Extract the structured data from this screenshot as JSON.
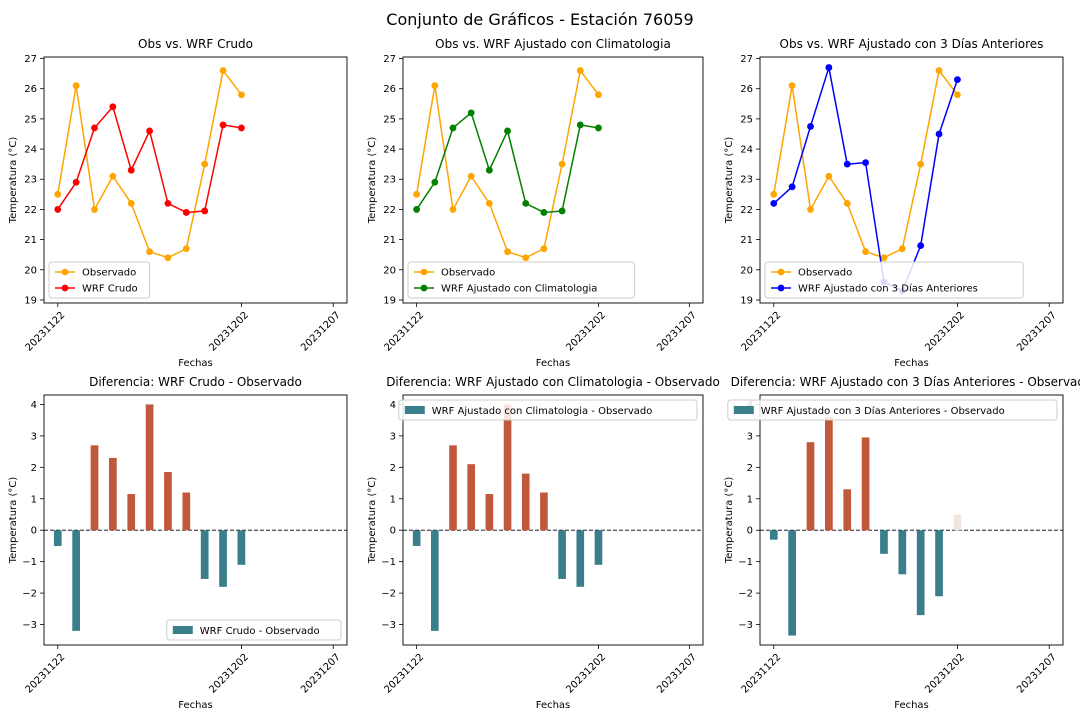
{
  "suptitle": "Conjunto de Gráficos - Estación 76059",
  "colors": {
    "observado": "#FFA500",
    "crudo": "#FF0000",
    "clima": "#008000",
    "tres_dias": "#0000FF",
    "positive_bar": "#C0583C",
    "negative_bar": "#3A7E8C",
    "faint_bar": "#F1E4DE"
  },
  "chart_data": [
    {
      "type": "line",
      "title": "Obs vs. WRF Crudo",
      "xlabel": "Fechas",
      "ylabel": "Temperatura (°C)",
      "x": [
        "20231122",
        "20231123",
        "20231124",
        "20231125",
        "20231126",
        "20231127",
        "20231128",
        "20231129",
        "20231130",
        "20231201",
        "20231202",
        "20231203",
        "20231204",
        "20231205",
        "20231206",
        "20231207"
      ],
      "xticks": [
        "20231122",
        "20231202",
        "20231207"
      ],
      "yticks": [
        19,
        20,
        21,
        22,
        23,
        24,
        25,
        26,
        27
      ],
      "ylim": [
        18.9,
        27.05
      ],
      "legend_position": "lower-left",
      "series": [
        {
          "name": "Observado",
          "color_key": "observado",
          "points": [
            [
              "20231122",
              22.5
            ],
            [
              "20231123",
              26.1
            ],
            [
              "20231124",
              22.0
            ],
            [
              "20231125",
              23.1
            ],
            [
              "20231126",
              22.2
            ],
            [
              "20231127",
              20.6
            ],
            [
              "20231128",
              20.4
            ],
            [
              "20231129",
              20.7
            ],
            [
              "20231130",
              23.5
            ],
            [
              "20231201",
              26.6
            ],
            [
              "20231202",
              25.8
            ]
          ]
        },
        {
          "name": "WRF Crudo",
          "color_key": "crudo",
          "points": [
            [
              "20231122",
              22.0
            ],
            [
              "20231123",
              22.9
            ],
            [
              "20231124",
              24.7
            ],
            [
              "20231125",
              25.4
            ],
            [
              "20231126",
              23.3
            ],
            [
              "20231127",
              24.6
            ],
            [
              "20231128",
              22.2
            ],
            [
              "20231129",
              21.9
            ],
            [
              "20231130",
              21.95
            ],
            [
              "20231201",
              24.8
            ],
            [
              "20231202",
              24.7
            ]
          ]
        }
      ]
    },
    {
      "type": "line",
      "title": "Obs vs. WRF Ajustado con Climatologia",
      "xlabel": "Fechas",
      "ylabel": "Temperatura (°C)",
      "xticks": [
        "20231122",
        "20231202",
        "20231207"
      ],
      "yticks": [
        19,
        20,
        21,
        22,
        23,
        24,
        25,
        26,
        27
      ],
      "ylim": [
        18.9,
        27.05
      ],
      "legend_position": "lower-left",
      "series": [
        {
          "name": "Observado",
          "color_key": "observado",
          "points": [
            [
              "20231122",
              22.5
            ],
            [
              "20231123",
              26.1
            ],
            [
              "20231124",
              22.0
            ],
            [
              "20231125",
              23.1
            ],
            [
              "20231126",
              22.2
            ],
            [
              "20231127",
              20.6
            ],
            [
              "20231128",
              20.4
            ],
            [
              "20231129",
              20.7
            ],
            [
              "20231130",
              23.5
            ],
            [
              "20231201",
              26.6
            ],
            [
              "20231202",
              25.8
            ]
          ]
        },
        {
          "name": "WRF Ajustado con Climatologia",
          "color_key": "clima",
          "points": [
            [
              "20231122",
              22.0
            ],
            [
              "20231123",
              22.9
            ],
            [
              "20231124",
              24.7
            ],
            [
              "20231125",
              25.2
            ],
            [
              "20231126",
              23.3
            ],
            [
              "20231127",
              24.6
            ],
            [
              "20231128",
              22.2
            ],
            [
              "20231129",
              21.9
            ],
            [
              "20231130",
              21.95
            ],
            [
              "20231201",
              24.8
            ],
            [
              "20231202",
              24.7
            ]
          ]
        }
      ]
    },
    {
      "type": "line",
      "title": "Obs vs. WRF Ajustado con 3 Días Anteriores",
      "xlabel": "Fechas",
      "ylabel": "Temperatura (°C)",
      "xticks": [
        "20231122",
        "20231202",
        "20231207"
      ],
      "yticks": [
        19,
        20,
        21,
        22,
        23,
        24,
        25,
        26,
        27
      ],
      "ylim": [
        18.9,
        27.05
      ],
      "legend_position": "lower-left",
      "series": [
        {
          "name": "Observado",
          "color_key": "observado",
          "points": [
            [
              "20231122",
              22.5
            ],
            [
              "20231123",
              26.1
            ],
            [
              "20231124",
              22.0
            ],
            [
              "20231125",
              23.1
            ],
            [
              "20231126",
              22.2
            ],
            [
              "20231127",
              20.6
            ],
            [
              "20231128",
              20.4
            ],
            [
              "20231129",
              20.7
            ],
            [
              "20231130",
              23.5
            ],
            [
              "20231201",
              26.6
            ],
            [
              "20231202",
              25.8
            ]
          ]
        },
        {
          "name": "WRF Ajustado con 3 Días Anteriores",
          "color_key": "tres_dias",
          "points": [
            [
              "20231122",
              22.2
            ],
            [
              "20231123",
              22.75
            ],
            [
              "20231124",
              24.75
            ],
            [
              "20231125",
              26.7
            ],
            [
              "20231126",
              23.5
            ],
            [
              "20231127",
              23.55
            ],
            [
              "20231128",
              19.6
            ],
            [
              "20231129",
              19.3
            ],
            [
              "20231130",
              20.8
            ],
            [
              "20231201",
              24.5
            ],
            [
              "20231202",
              26.3
            ]
          ]
        }
      ]
    },
    {
      "type": "bar",
      "title": "Diferencia: WRF Crudo - Observado",
      "xlabel": "Fechas",
      "ylabel": "Temperatura (°C)",
      "xticks": [
        "20231122",
        "20231202",
        "20231207"
      ],
      "yticks": [
        -3,
        -2,
        -1,
        0,
        1,
        2,
        3,
        4
      ],
      "ylim": [
        -3.65,
        4.3
      ],
      "legend_position": "lower-right",
      "series_name": "WRF Crudo - Observado",
      "bars": [
        [
          "20231122",
          -0.5
        ],
        [
          "20231123",
          -3.2
        ],
        [
          "20231124",
          2.7
        ],
        [
          "20231125",
          2.3
        ],
        [
          "20231126",
          1.15
        ],
        [
          "20231127",
          4.0
        ],
        [
          "20231128",
          1.85
        ],
        [
          "20231129",
          1.2
        ],
        [
          "20231130",
          -1.55
        ],
        [
          "20231201",
          -1.8
        ],
        [
          "20231202",
          -1.1
        ]
      ]
    },
    {
      "type": "bar",
      "title": "Diferencia: WRF Ajustado con Climatologia - Observado",
      "xlabel": "Fechas",
      "ylabel": "Temperatura (°C)",
      "xticks": [
        "20231122",
        "20231202",
        "20231207"
      ],
      "yticks": [
        -3,
        -2,
        -1,
        0,
        1,
        2,
        3,
        4
      ],
      "ylim": [
        -3.65,
        4.3
      ],
      "legend_position": "top-right",
      "series_name": "WRF Ajustado con Climatologia - Observado",
      "bars": [
        [
          "20231122",
          -0.5
        ],
        [
          "20231123",
          -3.2
        ],
        [
          "20231124",
          2.7
        ],
        [
          "20231125",
          2.1
        ],
        [
          "20231126",
          1.15
        ],
        [
          "20231127",
          4.0
        ],
        [
          "20231128",
          1.8
        ],
        [
          "20231129",
          1.2
        ],
        [
          "20231130",
          -1.55
        ],
        [
          "20231201",
          -1.8
        ],
        [
          "20231202",
          -1.1
        ]
      ]
    },
    {
      "type": "bar",
      "title": "Diferencia: WRF Ajustado con 3 Días Anteriores - Observado",
      "xlabel": "Fechas",
      "ylabel": "Temperatura (°C)",
      "xticks": [
        "20231122",
        "20231202",
        "20231207"
      ],
      "yticks": [
        -3,
        -2,
        -1,
        0,
        1,
        2,
        3,
        4
      ],
      "ylim": [
        -3.65,
        4.3
      ],
      "legend_position": "top-right",
      "series_name": "WRF Ajustado con 3 Días Anteriores - Observado",
      "bars": [
        [
          "20231122",
          -0.3
        ],
        [
          "20231123",
          -3.35
        ],
        [
          "20231124",
          2.8
        ],
        [
          "20231125",
          3.6
        ],
        [
          "20231126",
          1.3
        ],
        [
          "20231127",
          2.95
        ],
        [
          "20231128",
          -0.75
        ],
        [
          "20231129",
          -1.4
        ],
        [
          "20231130",
          -2.7
        ],
        [
          "20231201",
          -2.1
        ],
        [
          "20231202",
          0.5
        ]
      ]
    }
  ]
}
